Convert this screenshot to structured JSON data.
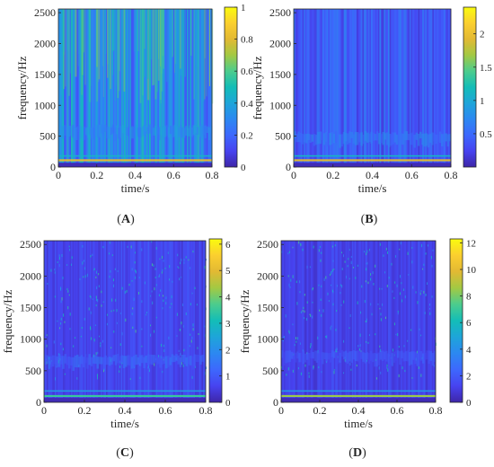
{
  "panels": [
    {
      "id": "A",
      "caption_letter": "A",
      "x_label": "time/s",
      "y_label": "frequency/Hz",
      "x_ticks": [
        0,
        0.2,
        0.4,
        0.6,
        0.8
      ],
      "y_ticks": [
        0,
        500,
        1000,
        1500,
        2000,
        2500
      ],
      "colorbar_ticks": [
        0,
        0.2,
        0.4,
        0.6,
        0.8,
        1
      ]
    },
    {
      "id": "B",
      "caption_letter": "B",
      "x_label": "time/s",
      "y_label": "frequency/Hz",
      "x_ticks": [
        0,
        0.2,
        0.4,
        0.6,
        0.8
      ],
      "y_ticks": [
        0,
        500,
        1000,
        1500,
        2000,
        2500
      ],
      "colorbar_ticks": [
        0.5,
        1,
        1.5,
        2
      ]
    },
    {
      "id": "C",
      "caption_letter": "C",
      "x_label": "time/s",
      "y_label": "frequency/Hz",
      "x_ticks": [
        0,
        0.2,
        0.4,
        0.6,
        0.8
      ],
      "y_ticks": [
        0,
        500,
        1000,
        1500,
        2000,
        2500
      ],
      "colorbar_ticks": [
        0,
        1,
        2,
        3,
        4,
        5,
        6
      ]
    },
    {
      "id": "D",
      "caption_letter": "D",
      "x_label": "time/s",
      "y_label": "frequency/Hz",
      "x_ticks": [
        0,
        0.2,
        0.4,
        0.6,
        0.8
      ],
      "y_ticks": [
        0,
        500,
        1000,
        1500,
        2000,
        2500
      ],
      "colorbar_ticks": [
        0,
        2,
        4,
        6,
        8,
        10,
        12
      ]
    }
  ],
  "chart_data": [
    {
      "type": "heatmap",
      "panel": "A",
      "xlabel": "time/s",
      "ylabel": "frequency/Hz",
      "xlim": [
        0,
        0.8
      ],
      "ylim": [
        0,
        2560
      ],
      "colorbar_range": [
        0,
        1
      ],
      "colormap": "parula",
      "features": [
        {
          "frequency": 110,
          "intensity": 0.8
        },
        {
          "frequency": 180,
          "intensity": 0.45
        },
        {
          "frequency": 560,
          "intensity": 0.35
        }
      ]
    },
    {
      "type": "heatmap",
      "panel": "B",
      "xlabel": "time/s",
      "ylabel": "frequency/Hz",
      "xlim": [
        0,
        0.8
      ],
      "ylim": [
        0,
        2560
      ],
      "colorbar_range": [
        0,
        2.4
      ],
      "colormap": "parula",
      "features": [
        {
          "frequency": 110,
          "intensity": 1.9
        },
        {
          "frequency": 180,
          "intensity": 1.1
        },
        {
          "frequency": 450,
          "intensity": 0.7
        }
      ]
    },
    {
      "type": "heatmap",
      "panel": "C",
      "xlabel": "time/s",
      "ylabel": "frequency/Hz",
      "xlim": [
        0,
        0.8
      ],
      "ylim": [
        0,
        2560
      ],
      "colorbar_range": [
        0,
        6.2
      ],
      "colormap": "parula",
      "features": [
        {
          "frequency": 100,
          "intensity": 3.5
        },
        {
          "frequency": 180,
          "intensity": 2.2
        },
        {
          "frequency": 640,
          "intensity": 1.4
        }
      ]
    },
    {
      "type": "heatmap",
      "panel": "D",
      "xlabel": "time/s",
      "ylabel": "frequency/Hz",
      "xlim": [
        0,
        0.8
      ],
      "ylim": [
        0,
        2560
      ],
      "colorbar_range": [
        0,
        12.3
      ],
      "colormap": "parula",
      "features": [
        {
          "frequency": 100,
          "intensity": 8.5
        },
        {
          "frequency": 180,
          "intensity": 4.2
        },
        {
          "frequency": 700,
          "intensity": 2.2
        }
      ]
    }
  ]
}
